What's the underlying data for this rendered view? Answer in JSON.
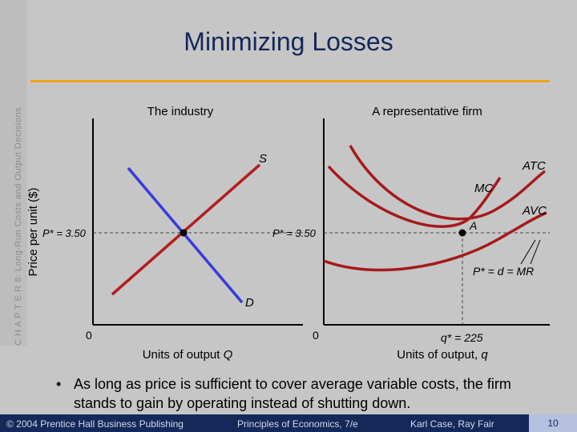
{
  "slide": {
    "sidebar_text": "C H A P T E R 8: Long-Run Costs and Output Decisions",
    "title": "Minimizing Losses",
    "bullet": "As long as price is sufficient to cover average variable costs, the firm stands to gain by operating instead of shutting down.",
    "footer": {
      "publisher": "© 2004 Prentice Hall Business Publishing",
      "book": "Principles of Economics, 7/e",
      "authors": "Karl Case, Ray Fair",
      "page": "10"
    }
  },
  "diagram": {
    "ylabel": "Price per unit ($)",
    "industry": {
      "title": "The industry",
      "xlabel": "Units of output",
      "xvar": "Q",
      "origin": "0",
      "price_label": "P* = 3.50",
      "supply_label": "S",
      "demand_label": "D",
      "supply_color": "#b31e1e",
      "demand_color": "#3a3ae0"
    },
    "firm": {
      "title": "A representative firm",
      "xlabel": "Units of output,",
      "xvar": "q",
      "origin": "0",
      "price_label": "P* = 3.50",
      "atc_label": "ATC",
      "mc_label": "MC",
      "avc_label": "AVC",
      "point_label": "A",
      "mr_label": "P* = d = MR",
      "q_label": "q* = 225",
      "curve_color": "#a61a1a"
    }
  }
}
